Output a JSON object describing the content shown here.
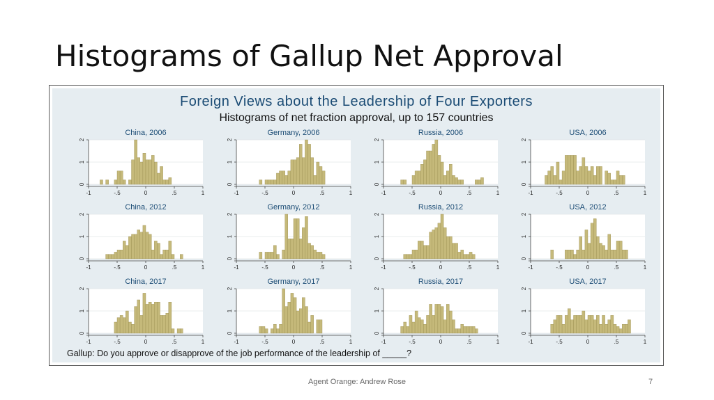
{
  "slide": {
    "title": "Histograms of Gallup Net Approval",
    "footer": "Agent Orange: Andrew Rose",
    "page_number": "7"
  },
  "figure": {
    "title": "Foreign Views about the Leadership of Four Exporters",
    "subtitle": "Histograms of net fraction approval, up to 157 countries",
    "note": "Gallup: Do you approve or disapprove of the job performance of the leadership of _____?"
  },
  "colors": {
    "bar_fill": "#c5b97a",
    "bar_stroke": "#9c8f52",
    "title_blue": "#1a4b74",
    "panel_bg": "#ffffff",
    "outer_bg": "#e6edf1"
  },
  "chart_data": {
    "type": "bar",
    "histogram": true,
    "bin_width": 0.05,
    "first_bin_left": -1,
    "xlim": [
      -1,
      1
    ],
    "ylim": [
      0,
      2
    ],
    "x_ticks": [
      "-1",
      "-.5",
      "0",
      ".5",
      "1"
    ],
    "x_tick_values": [
      -1,
      -0.5,
      0,
      0.5,
      1
    ],
    "y_ticks": [
      "0",
      "1",
      "2"
    ],
    "y_tick_values": [
      0,
      1,
      2
    ],
    "y_grid": true,
    "panels": [
      {
        "title": "China, 2006",
        "values": [
          0,
          0,
          0,
          0,
          0.2,
          0,
          0.2,
          0,
          0,
          0.2,
          0.6,
          0.6,
          0.2,
          0,
          0.2,
          1.1,
          2,
          1.2,
          1,
          1.4,
          1.1,
          1.1,
          1.3,
          1,
          0.5,
          0.8,
          0.2,
          0.2,
          0.3,
          0,
          0,
          0,
          0,
          0,
          0,
          0,
          0,
          0,
          0,
          0
        ]
      },
      {
        "title": "Germany, 2006",
        "values": [
          0,
          0,
          0,
          0,
          0,
          0,
          0,
          0,
          0.2,
          0,
          0.2,
          0.2,
          0.2,
          0.2,
          0.5,
          0.6,
          0.6,
          0.4,
          0.6,
          1.1,
          1.1,
          1.2,
          1.8,
          1.2,
          2,
          1.8,
          1.2,
          0.4,
          1,
          0.8,
          0.6,
          0,
          0,
          0,
          0,
          0,
          0,
          0,
          0,
          0
        ]
      },
      {
        "title": "Russia, 2006",
        "values": [
          0,
          0,
          0,
          0,
          0,
          0,
          0.2,
          0.2,
          0,
          0,
          0.4,
          0.6,
          0.6,
          0.9,
          1.1,
          1.5,
          1.5,
          1.8,
          2,
          1.3,
          1,
          0.4,
          0.6,
          0.9,
          0.4,
          0.3,
          0.2,
          0.2,
          0,
          0,
          0,
          0,
          0.2,
          0.2,
          0.3,
          0,
          0,
          0,
          0,
          0
        ]
      },
      {
        "title": "USA, 2006",
        "values": [
          0,
          0,
          0,
          0,
          0,
          0.4,
          0.6,
          0.8,
          0.4,
          1,
          0.2,
          0.6,
          1.3,
          1.3,
          1.3,
          1.3,
          0.6,
          0.8,
          1.2,
          0.8,
          0.6,
          0.8,
          0.4,
          0.8,
          0.8,
          0,
          0.6,
          0.5,
          0.2,
          0.2,
          0.6,
          0.4,
          0.4,
          0,
          0,
          0,
          0,
          0,
          0,
          0
        ]
      },
      {
        "title": "China, 2012",
        "values": [
          0,
          0,
          0,
          0,
          0,
          0,
          0.2,
          0.2,
          0.2,
          0.3,
          0.4,
          0.4,
          0.8,
          0.6,
          1,
          1.1,
          1.1,
          1.3,
          1.2,
          1.5,
          1.2,
          1.1,
          0.4,
          0.8,
          0.7,
          0.2,
          0.4,
          0.4,
          0.8,
          0.2,
          0,
          0,
          0.2,
          0,
          0,
          0,
          0,
          0,
          0,
          0
        ]
      },
      {
        "title": "Germany, 2012",
        "values": [
          0,
          0,
          0,
          0,
          0,
          0,
          0,
          0,
          0.3,
          0,
          0.3,
          0.3,
          0.3,
          0.6,
          0.2,
          0,
          0.4,
          2,
          0.9,
          0.9,
          1.8,
          1.8,
          0.9,
          1.4,
          1.9,
          0.7,
          0.6,
          0.4,
          0.3,
          0.3,
          0.2,
          0,
          0,
          0,
          0,
          0,
          0,
          0,
          0,
          0
        ]
      },
      {
        "title": "Russia, 2012",
        "values": [
          0,
          0,
          0,
          0,
          0,
          0,
          0,
          0.2,
          0.2,
          0.2,
          0.4,
          0.4,
          0.8,
          0.8,
          0.6,
          0.6,
          1.2,
          1.3,
          1.4,
          1.6,
          2,
          1.4,
          1,
          1,
          0.7,
          0.7,
          0.3,
          0.4,
          0.2,
          0.2,
          0.3,
          0.2,
          0,
          0,
          0,
          0,
          0,
          0,
          0,
          0
        ]
      },
      {
        "title": "USA, 2012",
        "values": [
          0,
          0,
          0,
          0,
          0,
          0,
          0,
          0.4,
          0,
          0,
          0,
          0,
          0.4,
          0.4,
          0.4,
          0.2,
          0.4,
          1,
          0.4,
          1.3,
          0.7,
          1.6,
          1.8,
          1,
          0.7,
          0.6,
          0.4,
          1.1,
          0.4,
          0.4,
          0.8,
          0.8,
          0.4,
          0.4,
          0,
          0,
          0,
          0,
          0,
          0
        ]
      },
      {
        "title": "China, 2017",
        "values": [
          0,
          0,
          0,
          0,
          0,
          0,
          0,
          0,
          0,
          0.5,
          0.7,
          0.8,
          0.7,
          1,
          0.5,
          0.4,
          1.2,
          1.5,
          0.8,
          1.8,
          1.3,
          1.4,
          1.3,
          1.4,
          1.4,
          0.8,
          0.8,
          0.9,
          1.4,
          0.2,
          0,
          0.2,
          0.2,
          0,
          0,
          0,
          0,
          0,
          0,
          0
        ]
      },
      {
        "title": "Germany, 2017",
        "values": [
          0,
          0,
          0,
          0,
          0,
          0,
          0,
          0,
          0.3,
          0.3,
          0.2,
          0,
          0.2,
          0.4,
          0.2,
          0.4,
          2,
          1.2,
          1.4,
          1.8,
          1.6,
          1,
          1.1,
          1.6,
          1.2,
          0.5,
          0.8,
          0,
          0.6,
          0.6,
          0,
          0,
          0,
          0,
          0,
          0,
          0,
          0,
          0,
          0
        ]
      },
      {
        "title": "Russia, 2017",
        "values": [
          0,
          0,
          0,
          0,
          0,
          0,
          0.3,
          0.5,
          0.3,
          0.8,
          0.5,
          1,
          0.7,
          0.6,
          0.4,
          0.8,
          1.3,
          0.8,
          1.3,
          1.3,
          1.2,
          0.6,
          1.3,
          1,
          0.6,
          0.2,
          0.2,
          0.4,
          0.3,
          0.3,
          0.3,
          0.3,
          0.2,
          0,
          0,
          0,
          0,
          0,
          0,
          0
        ]
      },
      {
        "title": "USA, 2017",
        "values": [
          0,
          0,
          0,
          0,
          0,
          0,
          0,
          0.4,
          0.6,
          0.8,
          0.8,
          0.4,
          0.8,
          1.1,
          0.6,
          0.8,
          0.8,
          0.8,
          1,
          0.6,
          0.8,
          0.8,
          0.6,
          0.8,
          0.4,
          0.8,
          0.4,
          0.6,
          0.8,
          0.4,
          0.3,
          0.2,
          0.4,
          0.4,
          0.6,
          0,
          0,
          0,
          0,
          0
        ]
      }
    ]
  }
}
